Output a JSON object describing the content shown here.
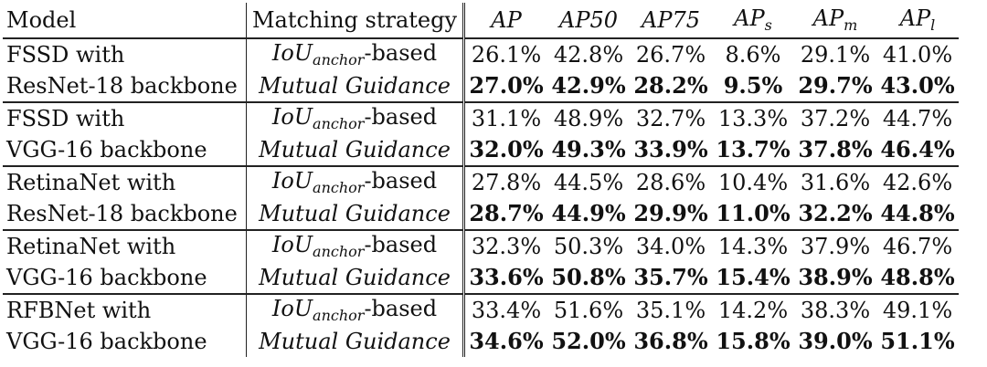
{
  "headers": {
    "model": "Model",
    "matching": "Matching strategy",
    "ap": "AP",
    "ap50": "AP50",
    "ap75": "AP75",
    "aps_base": "AP",
    "aps_sub": "s",
    "apm_base": "AP",
    "apm_sub": "m",
    "apl_base": "AP",
    "apl_sub": "l"
  },
  "matching": {
    "iou_base": "IoU",
    "iou_sub": "anchor",
    "iou_suffix": "-based",
    "mg": "Mutual Guidance"
  },
  "groups": [
    {
      "model_line1": "FSSD with",
      "model_line2": "ResNet-18 backbone",
      "iou": [
        "26.1%",
        "42.8%",
        "26.7%",
        "8.6%",
        "29.1%",
        "41.0%"
      ],
      "mg": [
        "27.0%",
        "42.9%",
        "28.2%",
        "9.5%",
        "29.7%",
        "43.0%"
      ]
    },
    {
      "model_line1": "FSSD with",
      "model_line2": "VGG-16 backbone",
      "iou": [
        "31.1%",
        "48.9%",
        "32.7%",
        "13.3%",
        "37.2%",
        "44.7%"
      ],
      "mg": [
        "32.0%",
        "49.3%",
        "33.9%",
        "13.7%",
        "37.8%",
        "46.4%"
      ]
    },
    {
      "model_line1": "RetinaNet with",
      "model_line2": "ResNet-18 backbone",
      "iou": [
        "27.8%",
        "44.5%",
        "28.6%",
        "10.4%",
        "31.6%",
        "42.6%"
      ],
      "mg": [
        "28.7%",
        "44.9%",
        "29.9%",
        "11.0%",
        "32.2%",
        "44.8%"
      ]
    },
    {
      "model_line1": "RetinaNet with",
      "model_line2": "VGG-16 backbone",
      "iou": [
        "32.3%",
        "50.3%",
        "34.0%",
        "14.3%",
        "37.9%",
        "46.7%"
      ],
      "mg": [
        "33.6%",
        "50.8%",
        "35.7%",
        "15.4%",
        "38.9%",
        "48.8%"
      ]
    },
    {
      "model_line1": "RFBNet with",
      "model_line2": "VGG-16 backbone",
      "iou": [
        "33.4%",
        "51.6%",
        "35.1%",
        "14.2%",
        "38.3%",
        "49.1%"
      ],
      "mg": [
        "34.6%",
        "52.0%",
        "36.8%",
        "15.8%",
        "39.0%",
        "51.1%"
      ]
    }
  ]
}
